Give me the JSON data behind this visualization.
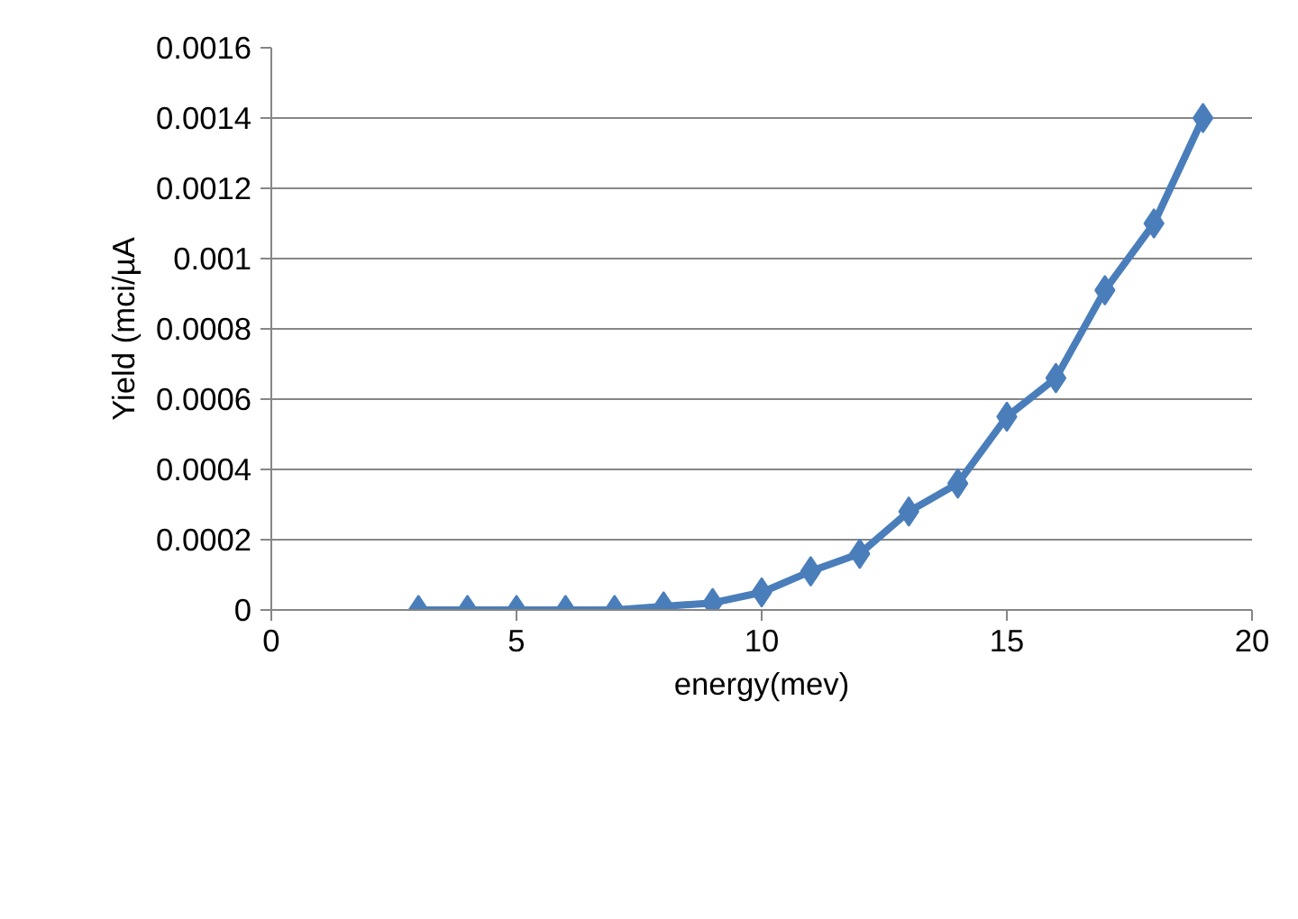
{
  "chart_data": {
    "type": "line",
    "xlabel": "energy(mev)",
    "ylabel": "Yield (mci/µA",
    "x": [
      3,
      4,
      5,
      6,
      7,
      8,
      9,
      10,
      11,
      12,
      13,
      14,
      15,
      16,
      17,
      18,
      19
    ],
    "series": [
      {
        "color": "#4a7ebb",
        "values": [
          0,
          0,
          0,
          0,
          0,
          1e-05,
          2e-05,
          5e-05,
          0.00011,
          0.00016,
          0.00028,
          0.00036,
          0.00055,
          0.00066,
          0.00091,
          0.0011,
          0.0014
        ]
      }
    ],
    "xlim": [
      0,
      20
    ],
    "xticks": [
      0,
      5,
      10,
      15,
      20
    ],
    "ylim": [
      0,
      0.0016
    ],
    "yticks": [
      0,
      {
        "value": 0.0002,
        "label": "0.0002"
      },
      {
        "value": 0.0004,
        "label": "0.0004"
      },
      {
        "value": 0.0006,
        "label": "0.0006"
      },
      {
        "value": 0.0008,
        "label": "0.0008"
      },
      {
        "value": 0.001,
        "label": "0.001"
      },
      {
        "value": 0.0012,
        "label": "0.0012"
      },
      {
        "value": 0.0014,
        "label": "0.0014"
      },
      {
        "value": 0.0016,
        "label": "0.0016"
      }
    ],
    "grid": "y",
    "marker": "diamond",
    "line_style": "solid"
  }
}
